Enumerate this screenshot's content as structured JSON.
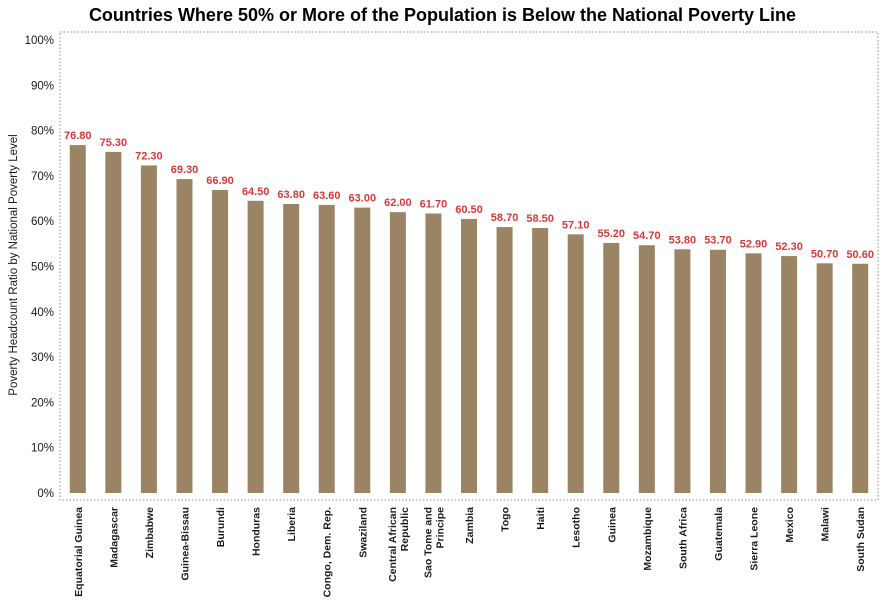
{
  "chart_data": {
    "type": "bar",
    "title": "Countries Where 50% or More of the Population is Below the National Poverty Line",
    "xlabel": "",
    "ylabel": "Poverty Headcount Ratio by National Poverty Level",
    "ylim": [
      0,
      100
    ],
    "y_ticks": [
      "0%",
      "10%",
      "20%",
      "30%",
      "40%",
      "50%",
      "60%",
      "70%",
      "80%",
      "90%",
      "100%"
    ],
    "categories": [
      "Equatorial Guinea",
      "Madagascar",
      "Zimbabwe",
      "Guinea-Bissau",
      "Burundi",
      "Honduras",
      "Liberia",
      "Congo, Dem. Rep.",
      "Swaziland",
      "Central African Republic",
      "Sao Tome and Principe",
      "Zambia",
      "Togo",
      "Haiti",
      "Lesotho",
      "Guinea",
      "Mozambique",
      "South Africa",
      "Guatemala",
      "Sierra Leone",
      "Mexico",
      "Malawi",
      "South Sudan"
    ],
    "category_label_lines": [
      [
        "Equatorial Guinea"
      ],
      [
        "Madagascar"
      ],
      [
        "Zimbabwe"
      ],
      [
        "Guinea-Bissau"
      ],
      [
        "Burundi"
      ],
      [
        "Honduras"
      ],
      [
        "Liberia"
      ],
      [
        "Congo, Dem. Rep."
      ],
      [
        "Swaziland"
      ],
      [
        "Central African",
        "Republic"
      ],
      [
        "Sao Tome and",
        "Principe"
      ],
      [
        "Zambia"
      ],
      [
        "Togo"
      ],
      [
        "Haiti"
      ],
      [
        "Lesotho"
      ],
      [
        "Guinea"
      ],
      [
        "Mozambique"
      ],
      [
        "South Africa"
      ],
      [
        "Guatemala"
      ],
      [
        "Sierra Leone"
      ],
      [
        "Mexico"
      ],
      [
        "Malawi"
      ],
      [
        "South Sudan"
      ]
    ],
    "values": [
      76.8,
      75.3,
      72.3,
      69.3,
      66.9,
      64.5,
      63.8,
      63.6,
      63.0,
      62.0,
      61.7,
      60.5,
      58.7,
      58.5,
      57.1,
      55.2,
      54.7,
      53.8,
      53.7,
      52.9,
      52.3,
      50.7,
      50.6
    ],
    "data_labels": [
      "76.80",
      "75.30",
      "72.30",
      "69.30",
      "66.90",
      "64.50",
      "63.80",
      "63.60",
      "63.00",
      "62.00",
      "61.70",
      "60.50",
      "58.70",
      "58.50",
      "57.10",
      "55.20",
      "54.70",
      "53.80",
      "53.70",
      "52.90",
      "52.30",
      "50.70",
      "50.60"
    ],
    "grid": false,
    "legend": "none",
    "colors": {
      "bar": "#9a8463",
      "data_label": "#d9383a",
      "axis_border": "#8c8c8c"
    }
  }
}
